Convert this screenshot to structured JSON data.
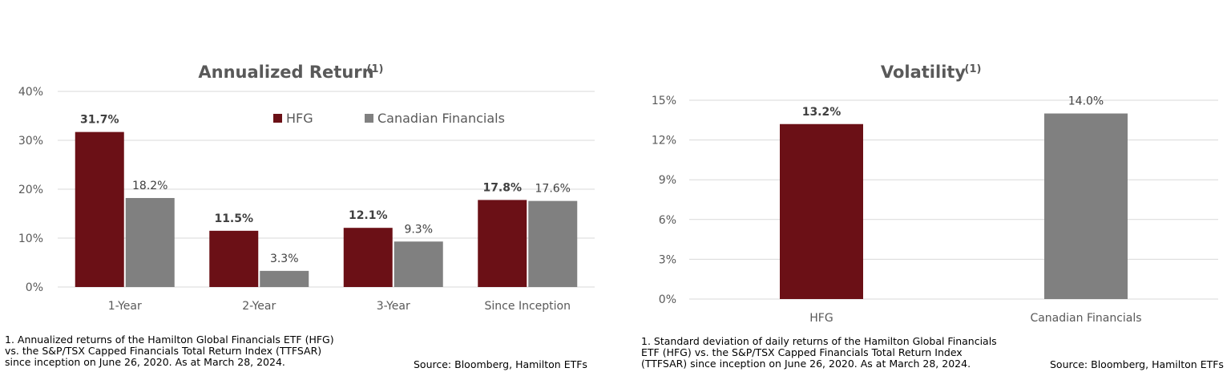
{
  "colors": {
    "hfg": "#6b1016",
    "canadian_financials": "#808080",
    "grid": "#d9d9d9"
  },
  "chart_data": [
    {
      "type": "bar",
      "title": "Annualized Return",
      "title_superscript": "(1)",
      "categories": [
        "1-Year",
        "2-Year",
        "3-Year",
        "Since Inception"
      ],
      "series": [
        {
          "name": "HFG",
          "values": [
            31.7,
            11.5,
            12.1,
            17.8
          ],
          "labels": [
            "31.7%",
            "11.5%",
            "12.1%",
            "17.8%"
          ]
        },
        {
          "name": "Canadian Financials",
          "values": [
            18.2,
            3.3,
            9.3,
            17.6
          ],
          "labels": [
            "18.2%",
            "3.3%",
            "9.3%",
            "17.6%"
          ]
        }
      ],
      "ylim": [
        0,
        40
      ],
      "yticks": [
        "0%",
        "10%",
        "20%",
        "30%",
        "40%"
      ],
      "grid": true,
      "legend": "top-right",
      "footnote": [
        "1. Annualized returns of the Hamilton Global Financials ETF (HFG)",
        "vs. the S&P/TSX Capped Financials Total Return Index (TTFSAR)",
        "since inception on June 26, 2020. As at March 28, 2024."
      ],
      "source": "Source: Bloomberg, Hamilton ETFs"
    },
    {
      "type": "bar",
      "title": "Volatility",
      "title_superscript": "(1)",
      "categories": [
        "HFG",
        "Canadian Financials"
      ],
      "values": [
        13.2,
        14.0
      ],
      "labels": [
        "13.2%",
        "14.0%"
      ],
      "ylim": [
        0,
        15
      ],
      "yticks": [
        "0%",
        "3%",
        "6%",
        "9%",
        "12%",
        "15%"
      ],
      "grid": true,
      "footnote": [
        "1. Standard deviation of daily returns of the Hamilton Global Financials",
        "ETF (HFG) vs. the S&P/TSX Capped Financials Total Return Index",
        "(TTFSAR) since inception on June 26, 2020. As at March 28, 2024."
      ],
      "source": "Source: Bloomberg, Hamilton ETFs"
    }
  ]
}
